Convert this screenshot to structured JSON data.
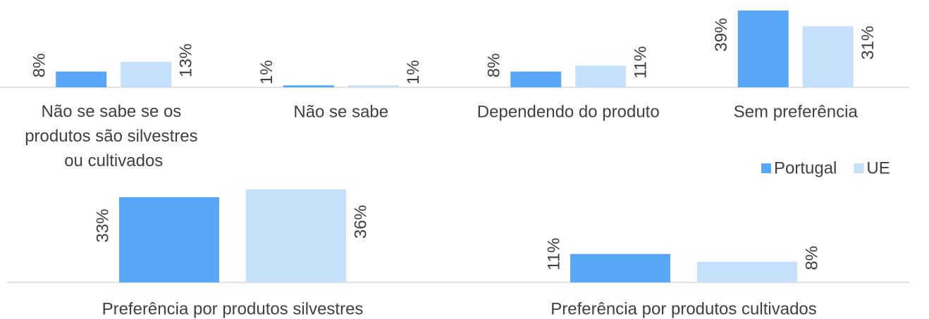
{
  "chart_data": {
    "type": "bar",
    "categories": [
      "Não se sabe se os produtos são silvestres ou cultivados",
      "Não se sabe",
      "Dependendo do produto",
      "Sem preferência",
      "Preferência por produtos silvestres",
      "Preferência por produtos cultivados"
    ],
    "series": [
      {
        "name": "Portugal",
        "color": "#58a6f6",
        "values": [
          8,
          1,
          8,
          39,
          33,
          11
        ],
        "value_labels": [
          "8%",
          "1%",
          "8%",
          "39%",
          "33%",
          "11%"
        ]
      },
      {
        "name": "UE",
        "color": "#c4e0fb",
        "values": [
          13,
          1,
          11,
          31,
          36,
          8
        ],
        "value_labels": [
          "13%",
          "1%",
          "11%",
          "31%",
          "36%",
          "8%"
        ]
      }
    ],
    "legend": "right"
  }
}
